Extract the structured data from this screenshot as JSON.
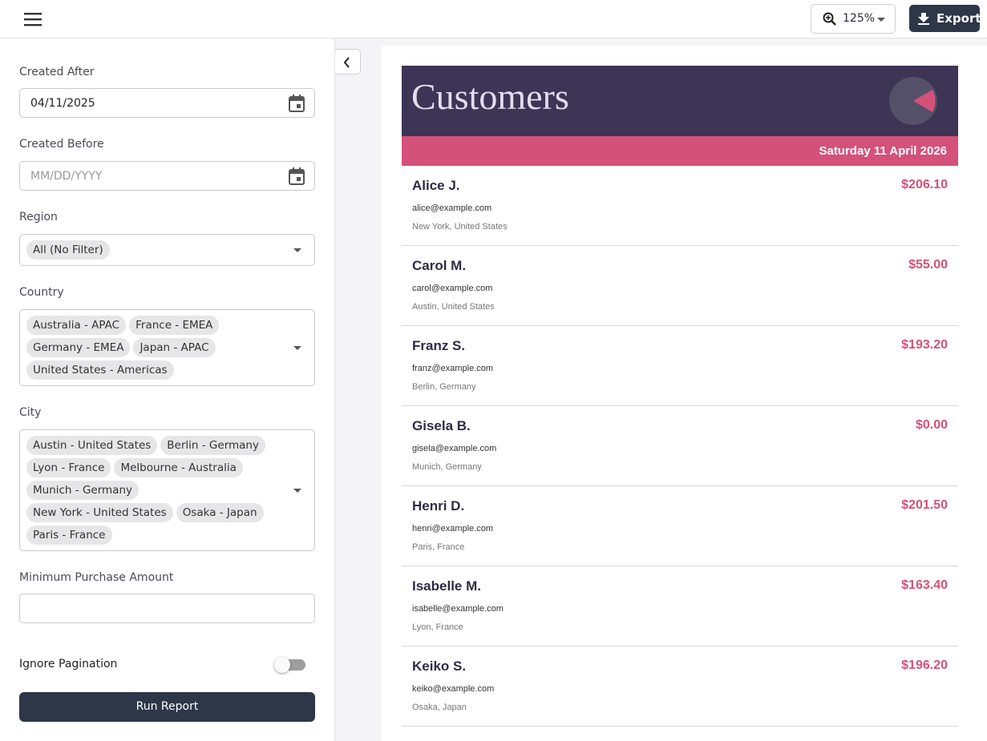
{
  "toolbar": {
    "zoom": "125%",
    "export": "Export"
  },
  "filters": {
    "created_after": {
      "label": "Created After",
      "value": "04/11/2025"
    },
    "created_before": {
      "label": "Created Before",
      "placeholder": "MM/DD/YYYY"
    },
    "region": {
      "label": "Region",
      "chips": [
        "All (No Filter)"
      ]
    },
    "country": {
      "label": "Country",
      "chips": [
        "Australia - APAC",
        "France - EMEA",
        "Germany - EMEA",
        "Japan - APAC",
        "United States - Americas"
      ]
    },
    "city": {
      "label": "City",
      "chips": [
        "Austin - United States",
        "Berlin - Germany",
        "Lyon - France",
        "Melbourne - Australia",
        "Munich - Germany",
        "New York - United States",
        "Osaka - Japan",
        "Paris - France"
      ]
    },
    "min_purchase": {
      "label": "Minimum Purchase Amount"
    },
    "ignore_pagination": {
      "label": "Ignore Pagination"
    },
    "run": "Run Report"
  },
  "report": {
    "title": "Customers",
    "date": "Saturday 11 April 2026",
    "customers": [
      {
        "name": "Alice J.",
        "email": "alice@example.com",
        "location": "New York, United States",
        "amount": "$206.10"
      },
      {
        "name": "Carol M.",
        "email": "carol@example.com",
        "location": "Austin, United States",
        "amount": "$55.00"
      },
      {
        "name": "Franz S.",
        "email": "franz@example.com",
        "location": "Berlin, Germany",
        "amount": "$193.20"
      },
      {
        "name": "Gisela B.",
        "email": "gisela@example.com",
        "location": "Munich, Germany",
        "amount": "$0.00"
      },
      {
        "name": "Henri D.",
        "email": "henri@example.com",
        "location": "Paris, France",
        "amount": "$201.50"
      },
      {
        "name": "Isabelle M.",
        "email": "isabelle@example.com",
        "location": "Lyon, France",
        "amount": "$163.40"
      },
      {
        "name": "Keiko S.",
        "email": "keiko@example.com",
        "location": "Osaka, Japan",
        "amount": "$196.20"
      }
    ]
  }
}
